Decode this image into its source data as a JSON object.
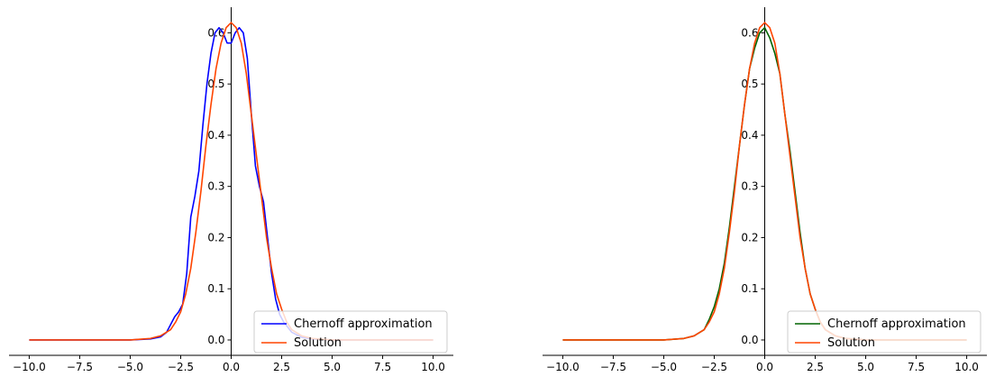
{
  "chart_data": [
    {
      "type": "line",
      "xlim": [
        -11,
        11
      ],
      "ylim": [
        -0.03,
        0.65
      ],
      "xticks": [
        -10,
        -7.5,
        -5,
        -2.5,
        0,
        2.5,
        5,
        7.5,
        10
      ],
      "xtick_labels": [
        "−10.0",
        "−7.5",
        "−5.0",
        "−2.5",
        "0.0",
        "2.5",
        "5.0",
        "7.5",
        "10.0"
      ],
      "yticks": [
        0,
        0.1,
        0.2,
        0.3,
        0.4,
        0.5,
        0.6
      ],
      "ytick_labels": [
        "0.0",
        "0.1",
        "0.2",
        "0.3",
        "0.4",
        "0.5",
        "0.6"
      ],
      "legend_position": "lower-right",
      "series": [
        {
          "name": "Chernoff approximation",
          "color": "#0000ff",
          "x": [
            -10,
            -5,
            -4,
            -3.5,
            -3.2,
            -3.0,
            -2.8,
            -2.6,
            -2.4,
            -2.2,
            -2.0,
            -1.8,
            -1.6,
            -1.4,
            -1.2,
            -1.0,
            -0.8,
            -0.6,
            -0.4,
            -0.2,
            0.0,
            0.2,
            0.4,
            0.6,
            0.8,
            1.0,
            1.2,
            1.4,
            1.6,
            1.8,
            2.0,
            2.2,
            2.4,
            2.6,
            2.8,
            3.0,
            3.5,
            4.0,
            5.0,
            10.0
          ],
          "y": [
            0.0,
            0.0,
            0.002,
            0.006,
            0.015,
            0.03,
            0.045,
            0.055,
            0.07,
            0.13,
            0.24,
            0.28,
            0.33,
            0.42,
            0.5,
            0.56,
            0.6,
            0.61,
            0.6,
            0.58,
            0.58,
            0.6,
            0.61,
            0.6,
            0.55,
            0.44,
            0.34,
            0.3,
            0.27,
            0.2,
            0.13,
            0.08,
            0.05,
            0.035,
            0.025,
            0.015,
            0.005,
            0.002,
            0.0,
            0.0
          ]
        },
        {
          "name": "Solution",
          "color": "#ff4500",
          "x": [
            -10,
            -5,
            -4,
            -3.5,
            -3.0,
            -2.75,
            -2.5,
            -2.25,
            -2.0,
            -1.75,
            -1.5,
            -1.25,
            -1.0,
            -0.75,
            -0.5,
            -0.25,
            0.0,
            0.25,
            0.5,
            0.75,
            1.0,
            1.25,
            1.5,
            1.75,
            2.0,
            2.25,
            2.5,
            2.75,
            3.0,
            3.5,
            4.0,
            5.0,
            10.0
          ],
          "y": [
            0.0,
            0.0,
            0.003,
            0.008,
            0.02,
            0.035,
            0.055,
            0.09,
            0.14,
            0.21,
            0.29,
            0.38,
            0.46,
            0.53,
            0.58,
            0.61,
            0.62,
            0.61,
            0.58,
            0.52,
            0.44,
            0.36,
            0.28,
            0.2,
            0.14,
            0.09,
            0.06,
            0.035,
            0.02,
            0.008,
            0.003,
            0.0,
            0.0
          ]
        }
      ]
    },
    {
      "type": "line",
      "xlim": [
        -11,
        11
      ],
      "ylim": [
        -0.03,
        0.65
      ],
      "xticks": [
        -10,
        -7.5,
        -5,
        -2.5,
        0,
        2.5,
        5,
        7.5,
        10
      ],
      "xtick_labels": [
        "−10.0",
        "−7.5",
        "−5.0",
        "−2.5",
        "0.0",
        "2.5",
        "5.0",
        "7.5",
        "10.0"
      ],
      "yticks": [
        0,
        0.1,
        0.2,
        0.3,
        0.4,
        0.5,
        0.6
      ],
      "ytick_labels": [
        "0.0",
        "0.1",
        "0.2",
        "0.3",
        "0.4",
        "0.5",
        "0.6"
      ],
      "legend_position": "lower-right",
      "series": [
        {
          "name": "Chernoff approximation",
          "color": "#006400",
          "x": [
            -10,
            -5,
            -4,
            -3.5,
            -3.0,
            -2.75,
            -2.5,
            -2.25,
            -2.0,
            -1.75,
            -1.5,
            -1.25,
            -1.0,
            -0.75,
            -0.5,
            -0.25,
            0.0,
            0.25,
            0.5,
            0.75,
            1.0,
            1.25,
            1.5,
            1.75,
            2.0,
            2.25,
            2.5,
            2.75,
            3.0,
            3.5,
            4.0,
            5.0,
            10.0
          ],
          "y": [
            0.0,
            0.0,
            0.003,
            0.008,
            0.02,
            0.04,
            0.065,
            0.1,
            0.15,
            0.22,
            0.3,
            0.38,
            0.46,
            0.53,
            0.57,
            0.6,
            0.61,
            0.59,
            0.56,
            0.52,
            0.44,
            0.37,
            0.29,
            0.21,
            0.14,
            0.09,
            0.06,
            0.035,
            0.02,
            0.008,
            0.003,
            0.0,
            0.0
          ]
        },
        {
          "name": "Solution",
          "color": "#ff4500",
          "x": [
            -10,
            -5,
            -4,
            -3.5,
            -3.0,
            -2.75,
            -2.5,
            -2.25,
            -2.0,
            -1.75,
            -1.5,
            -1.25,
            -1.0,
            -0.75,
            -0.5,
            -0.25,
            0.0,
            0.25,
            0.5,
            0.75,
            1.0,
            1.25,
            1.5,
            1.75,
            2.0,
            2.25,
            2.5,
            2.75,
            3.0,
            3.5,
            4.0,
            5.0,
            10.0
          ],
          "y": [
            0.0,
            0.0,
            0.003,
            0.008,
            0.02,
            0.035,
            0.055,
            0.09,
            0.14,
            0.21,
            0.29,
            0.38,
            0.46,
            0.53,
            0.58,
            0.61,
            0.62,
            0.61,
            0.58,
            0.52,
            0.44,
            0.36,
            0.28,
            0.2,
            0.14,
            0.09,
            0.06,
            0.035,
            0.02,
            0.008,
            0.003,
            0.0,
            0.0
          ]
        }
      ]
    }
  ]
}
